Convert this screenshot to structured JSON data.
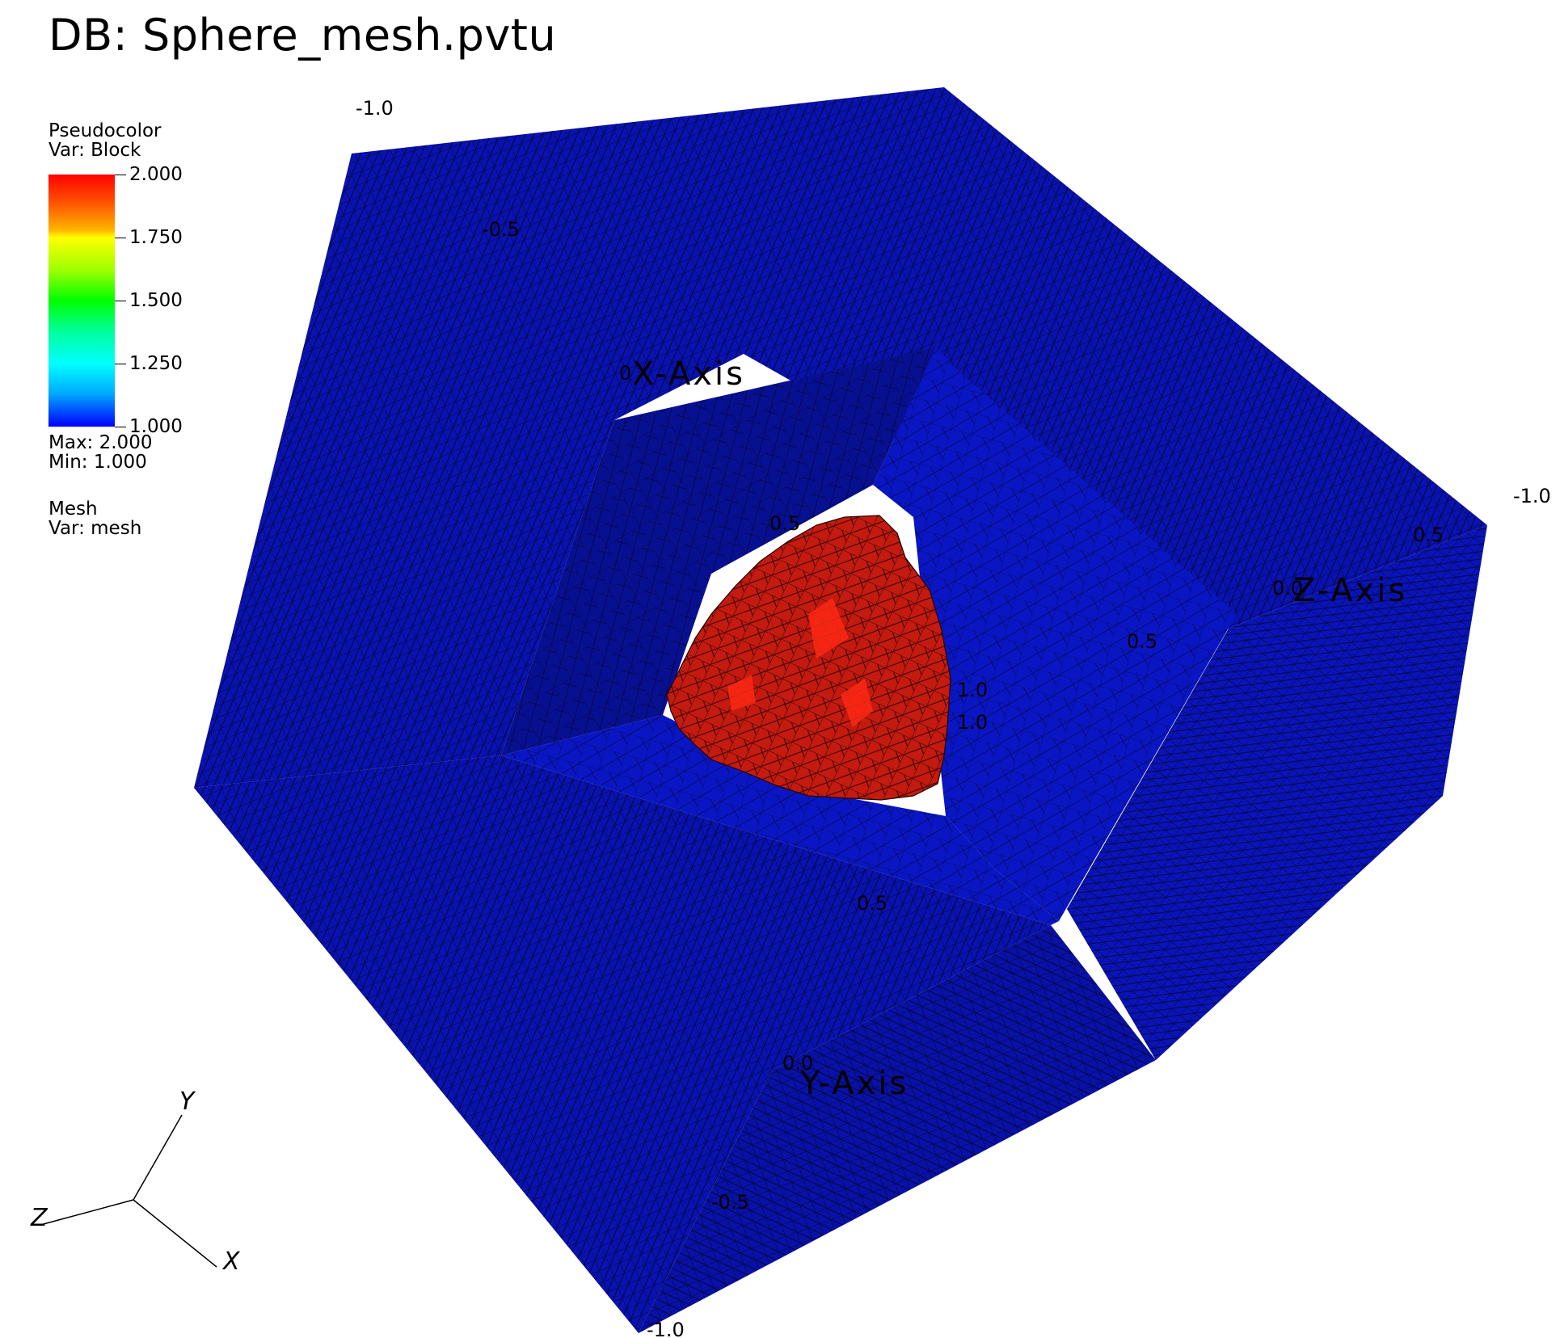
{
  "title": "DB: Sphere_mesh.pvtu",
  "legend": {
    "plot_name": "Pseudocolor",
    "variable": "Var: Block",
    "ticks": [
      "2.000",
      "1.750",
      "1.500",
      "1.250",
      "1.000"
    ],
    "max_text": "Max:  2.000",
    "min_text": "Min:  1.000",
    "mesh_name": "Mesh",
    "mesh_variable": "Var: mesh"
  },
  "axes": {
    "x_title": "X-Axis",
    "y_title": "Y-Axis",
    "z_title": "Z-Axis",
    "labels": {
      "top_corner": "-1.0",
      "right_corner": "-1.0",
      "bottom_corner": "-1.0",
      "x_half": "-0.5",
      "x_zero": "0",
      "inner_half": "0.5",
      "z_zero": "0.0",
      "z_half": "0.5",
      "inner_z_half": "0.5",
      "one_a": "1.0",
      "one_b": "1.0",
      "y_half_inner": "0.5",
      "y_zero": "0.0",
      "y_neg_half": "-0.5"
    }
  },
  "triad": {
    "x": "X",
    "y": "Y",
    "z": "Z"
  },
  "colors": {
    "block_1": "#0a14b4",
    "block_2": "#cc1a10",
    "mesh_lines": "#000000",
    "background": "#ffffff"
  }
}
